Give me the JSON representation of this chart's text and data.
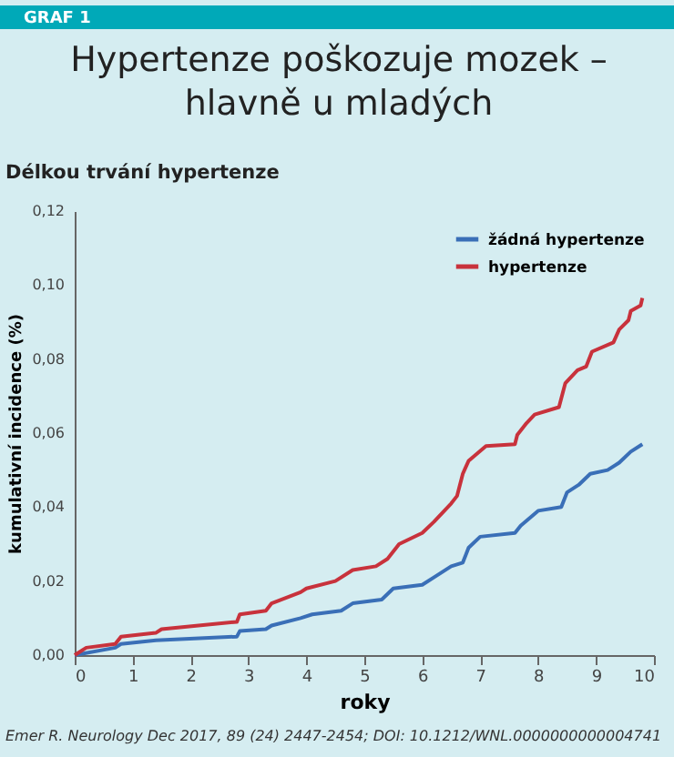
{
  "chart_data": {
    "type": "line",
    "title": "Hypertenze poškozuje mozek –\nhlavně u mladých",
    "subtitle": "Délkou trvání hypertenze",
    "xlabel": "roky",
    "ylabel": "kumulativní incidence (%)",
    "annotations": [
      "GRAF 1",
      "Emer R. Neurology Dec 2017, 89 (24) 2447-2454; DOI: 10.1212/WNL.0000000000004741"
    ],
    "series": [
      {
        "name": "žádná hypertenze",
        "color": "#3a6fb7",
        "x": [
          0,
          0.7,
          0.8,
          1.4,
          2.8,
          2.85,
          3.3,
          3.4,
          3.9,
          4.1,
          4.6,
          4.8,
          5.3,
          5.5,
          6.0,
          6.2,
          6.5,
          6.7,
          6.8,
          7.0,
          7.6,
          7.7,
          8.0,
          8.4,
          8.5,
          8.7,
          8.9,
          9.2,
          9.4,
          9.6,
          9.8
        ],
        "values": [
          0,
          0.002,
          0.003,
          0.004,
          0.005,
          0.0065,
          0.007,
          0.008,
          0.01,
          0.011,
          0.012,
          0.014,
          0.015,
          0.018,
          0.019,
          0.021,
          0.024,
          0.025,
          0.029,
          0.032,
          0.033,
          0.035,
          0.039,
          0.04,
          0.044,
          0.046,
          0.049,
          0.05,
          0.052,
          0.055,
          0.057
        ]
      },
      {
        "name": "hypertenze",
        "color": "#c8323c",
        "x": [
          0,
          0.2,
          0.7,
          0.8,
          1.4,
          1.5,
          2.8,
          2.85,
          3.3,
          3.4,
          3.9,
          4.0,
          4.5,
          4.8,
          5.2,
          5.4,
          5.6,
          6.0,
          6.2,
          6.5,
          6.6,
          6.7,
          6.8,
          7.1,
          7.6,
          7.64,
          7.8,
          7.94,
          8.36,
          8.47,
          8.68,
          8.83,
          8.93,
          9.3,
          9.4,
          9.56,
          9.6,
          9.77,
          9.8
        ],
        "values": [
          0,
          0.002,
          0.003,
          0.005,
          0.006,
          0.007,
          0.009,
          0.011,
          0.012,
          0.014,
          0.017,
          0.018,
          0.02,
          0.023,
          0.024,
          0.026,
          0.03,
          0.033,
          0.036,
          0.041,
          0.043,
          0.049,
          0.0525,
          0.0565,
          0.057,
          0.0595,
          0.0627,
          0.065,
          0.067,
          0.0735,
          0.077,
          0.078,
          0.082,
          0.0845,
          0.088,
          0.0905,
          0.093,
          0.0945,
          0.0965
        ]
      }
    ],
    "xlim": [
      0,
      10
    ],
    "xticks": [
      0,
      1,
      2,
      3,
      4,
      5,
      6,
      7,
      8,
      9,
      10
    ],
    "ylim": [
      0,
      0.12
    ],
    "yticks": [
      {
        "value": 0,
        "label": "0,00"
      },
      {
        "value": 0.02,
        "label": "0,02"
      },
      {
        "value": 0.04,
        "label": "0,04"
      },
      {
        "value": 0.06,
        "label": "0,06"
      },
      {
        "value": 0.08,
        "label": "0,08"
      },
      {
        "value": 0.1,
        "label": "0,10"
      },
      {
        "value": 0.12,
        "label": "0,12"
      }
    ],
    "grid": false,
    "legend": "top right",
    "line_style": "solid",
    "marker": "none"
  }
}
